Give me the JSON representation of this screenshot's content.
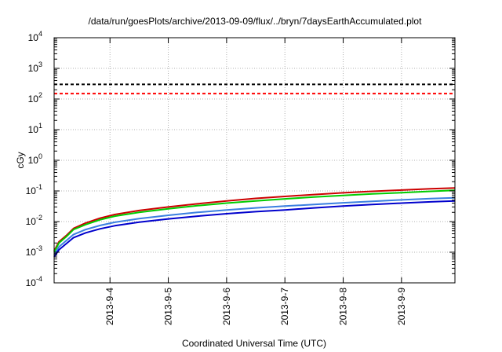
{
  "chart_data": {
    "type": "line",
    "title": "/data/run/goesPlots/archive/2013-09-09/flux/../bryn/7daysEarthAccumulated.plot",
    "xlabel": "Coordinated Universal Time (UTC)",
    "ylabel": "cGy",
    "y_scale": "log",
    "ylim": [
      0.0001,
      10000
    ],
    "xlim": [
      "2013-09-03T01:00",
      "2013-09-09T22:00"
    ],
    "y_ticks": [
      {
        "value": 0.0001,
        "base": "10",
        "exp": "-4"
      },
      {
        "value": 0.001,
        "base": "10",
        "exp": "-3"
      },
      {
        "value": 0.01,
        "base": "10",
        "exp": "-2"
      },
      {
        "value": 0.1,
        "base": "10",
        "exp": "-1"
      },
      {
        "value": 1,
        "base": "10",
        "exp": "0"
      },
      {
        "value": 10,
        "base": "10",
        "exp": "1"
      },
      {
        "value": 100,
        "base": "10",
        "exp": "2"
      },
      {
        "value": 1000,
        "base": "10",
        "exp": "3"
      },
      {
        "value": 10000,
        "base": "10",
        "exp": "4"
      }
    ],
    "x_ticks": [
      {
        "value": "2013-09-04",
        "label": "2013-9-4"
      },
      {
        "value": "2013-09-05",
        "label": "2013-9-5"
      },
      {
        "value": "2013-09-06",
        "label": "2013-9-6"
      },
      {
        "value": "2013-09-07",
        "label": "2013-9-7"
      },
      {
        "value": "2013-09-08",
        "label": "2013-9-8"
      },
      {
        "value": "2013-09-09",
        "label": "2013-9-9"
      }
    ],
    "grid": true,
    "reference_lines": [
      {
        "y": 300,
        "color": "#000000",
        "style": "dashed"
      },
      {
        "y": 150,
        "color": "#ff0000",
        "style": "dashed"
      }
    ],
    "series": [
      {
        "color": "#cc0000",
        "points": [
          [
            "2013-09-03T01:00",
            0.0011
          ],
          [
            "2013-09-03T03:00",
            0.0022
          ],
          [
            "2013-09-03T06:00",
            0.0035
          ],
          [
            "2013-09-03T09:00",
            0.006
          ],
          [
            "2013-09-03T14:00",
            0.009
          ],
          [
            "2013-09-03T20:00",
            0.013
          ],
          [
            "2013-09-04T02:00",
            0.017
          ],
          [
            "2013-09-04T12:00",
            0.023
          ],
          [
            "2013-09-05T00:00",
            0.03
          ],
          [
            "2013-09-05T12:00",
            0.038
          ],
          [
            "2013-09-06T00:00",
            0.047
          ],
          [
            "2013-09-06T12:00",
            0.057
          ],
          [
            "2013-09-07T00:00",
            0.066
          ],
          [
            "2013-09-07T12:00",
            0.076
          ],
          [
            "2013-09-08T00:00",
            0.087
          ],
          [
            "2013-09-08T12:00",
            0.097
          ],
          [
            "2013-09-09T00:00",
            0.107
          ],
          [
            "2013-09-09T12:00",
            0.117
          ],
          [
            "2013-09-09T22:00",
            0.125
          ]
        ]
      },
      {
        "color": "#00cc00",
        "points": [
          [
            "2013-09-03T01:00",
            0.001
          ],
          [
            "2013-09-03T03:00",
            0.002
          ],
          [
            "2013-09-03T06:00",
            0.0032
          ],
          [
            "2013-09-03T09:00",
            0.0055
          ],
          [
            "2013-09-03T14:00",
            0.008
          ],
          [
            "2013-09-03T20:00",
            0.0115
          ],
          [
            "2013-09-04T02:00",
            0.015
          ],
          [
            "2013-09-04T12:00",
            0.02
          ],
          [
            "2013-09-05T00:00",
            0.026
          ],
          [
            "2013-09-05T12:00",
            0.033
          ],
          [
            "2013-09-06T00:00",
            0.04
          ],
          [
            "2013-09-06T12:00",
            0.047
          ],
          [
            "2013-09-07T00:00",
            0.055
          ],
          [
            "2013-09-07T12:00",
            0.063
          ],
          [
            "2013-09-08T00:00",
            0.071
          ],
          [
            "2013-09-08T12:00",
            0.08
          ],
          [
            "2013-09-09T00:00",
            0.088
          ],
          [
            "2013-09-09T12:00",
            0.097
          ],
          [
            "2013-09-09T22:00",
            0.104
          ]
        ]
      },
      {
        "color": "#3a7fe0",
        "points": [
          [
            "2013-09-03T01:00",
            0.0008
          ],
          [
            "2013-09-03T03:00",
            0.0015
          ],
          [
            "2013-09-03T06:00",
            0.0024
          ],
          [
            "2013-09-03T09:00",
            0.0038
          ],
          [
            "2013-09-03T14:00",
            0.0055
          ],
          [
            "2013-09-03T20:00",
            0.0075
          ],
          [
            "2013-09-04T02:00",
            0.0095
          ],
          [
            "2013-09-04T12:00",
            0.0125
          ],
          [
            "2013-09-05T00:00",
            0.016
          ],
          [
            "2013-09-05T12:00",
            0.02
          ],
          [
            "2013-09-06T00:00",
            0.024
          ],
          [
            "2013-09-06T12:00",
            0.028
          ],
          [
            "2013-09-07T00:00",
            0.032
          ],
          [
            "2013-09-07T12:00",
            0.036
          ],
          [
            "2013-09-08T00:00",
            0.041
          ],
          [
            "2013-09-08T12:00",
            0.046
          ],
          [
            "2013-09-09T00:00",
            0.051
          ],
          [
            "2013-09-09T12:00",
            0.056
          ],
          [
            "2013-09-09T22:00",
            0.06
          ]
        ]
      },
      {
        "color": "#0000cc",
        "points": [
          [
            "2013-09-03T01:00",
            0.0007
          ],
          [
            "2013-09-03T03:00",
            0.0012
          ],
          [
            "2013-09-03T06:00",
            0.0019
          ],
          [
            "2013-09-03T09:00",
            0.003
          ],
          [
            "2013-09-03T14:00",
            0.0043
          ],
          [
            "2013-09-03T20:00",
            0.0058
          ],
          [
            "2013-09-04T02:00",
            0.0073
          ],
          [
            "2013-09-04T12:00",
            0.0096
          ],
          [
            "2013-09-05T00:00",
            0.0122
          ],
          [
            "2013-09-05T12:00",
            0.015
          ],
          [
            "2013-09-06T00:00",
            0.018
          ],
          [
            "2013-09-06T12:00",
            0.021
          ],
          [
            "2013-09-07T00:00",
            0.024
          ],
          [
            "2013-09-07T12:00",
            0.028
          ],
          [
            "2013-09-08T00:00",
            0.032
          ],
          [
            "2013-09-08T12:00",
            0.036
          ],
          [
            "2013-09-09T00:00",
            0.04
          ],
          [
            "2013-09-09T12:00",
            0.044
          ],
          [
            "2013-09-09T22:00",
            0.047
          ]
        ]
      }
    ]
  }
}
